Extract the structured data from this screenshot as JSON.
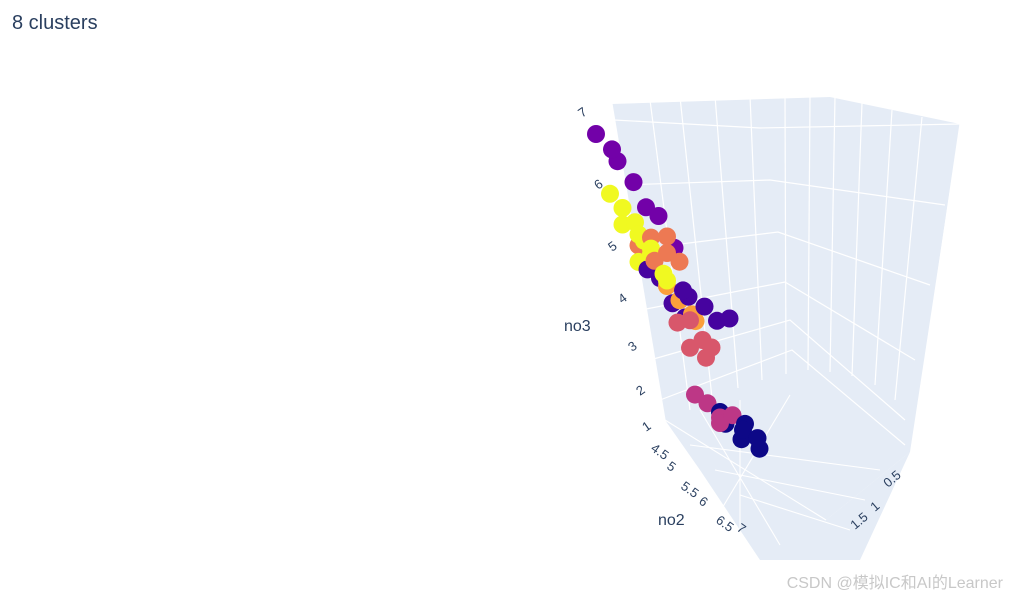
{
  "chart_data": {
    "type": "scatter3d",
    "title": "8 clusters",
    "axes": {
      "x": {
        "label": "no2",
        "ticks": [
          "4.5",
          "5",
          "5.5",
          "6",
          "6.5",
          "7"
        ]
      },
      "y": {
        "label": "",
        "ticks": [
          "0.5",
          "1",
          "1.5"
        ]
      },
      "z": {
        "label": "no3",
        "ticks": [
          "1",
          "2",
          "3",
          "4",
          "5",
          "6",
          "7"
        ]
      }
    },
    "colors": [
      "#0d0887",
      "#46039f",
      "#7201a8",
      "#9c179e",
      "#bd3786",
      "#d8576b",
      "#ed7953",
      "#fb9f3a",
      "#fdca26",
      "#f0f921"
    ],
    "background": "#e5ecf6",
    "grid": true,
    "legend": "none",
    "clusters": [
      {
        "color": "#0d0887",
        "points": [
          [
            6.6,
            1.2,
            2.0
          ],
          [
            6.4,
            1.1,
            2.2
          ],
          [
            6.8,
            1.3,
            2.1
          ],
          [
            6.5,
            1.0,
            2.4
          ],
          [
            6.7,
            1.2,
            2.3
          ],
          [
            6.6,
            1.4,
            1.9
          ],
          [
            6.9,
            1.1,
            2.2
          ]
        ]
      },
      {
        "color": "#46039f",
        "points": [
          [
            5.4,
            0.9,
            4.1
          ],
          [
            5.6,
            1.0,
            4.3
          ],
          [
            5.8,
            1.1,
            4.2
          ],
          [
            5.3,
            0.8,
            4.5
          ],
          [
            5.9,
            1.2,
            4.0
          ],
          [
            5.5,
            1.0,
            3.9
          ],
          [
            5.7,
            0.9,
            4.4
          ],
          [
            5.2,
            0.7,
            4.6
          ],
          [
            6.0,
            1.3,
            4.1
          ],
          [
            4.8,
            0.8,
            5.0
          ]
        ]
      },
      {
        "color": "#7201a8",
        "points": [
          [
            4.6,
            0.6,
            6.4
          ],
          [
            4.8,
            0.7,
            6.1
          ],
          [
            4.7,
            0.5,
            6.6
          ],
          [
            4.9,
            0.8,
            5.7
          ],
          [
            5.0,
            0.9,
            5.6
          ],
          [
            5.2,
            1.0,
            5.1
          ],
          [
            4.5,
            0.4,
            6.8
          ]
        ]
      },
      {
        "color": "#bd3786",
        "points": [
          [
            6.5,
            1.0,
            2.3
          ],
          [
            6.4,
            0.9,
            2.5
          ],
          [
            6.6,
            1.1,
            2.4
          ],
          [
            6.3,
            0.8,
            2.6
          ],
          [
            6.5,
            1.0,
            2.2
          ]
        ]
      },
      {
        "color": "#d8576b",
        "points": [
          [
            5.9,
            0.9,
            3.4
          ],
          [
            6.0,
            1.0,
            3.6
          ],
          [
            5.8,
            0.8,
            3.8
          ],
          [
            6.1,
            1.0,
            3.3
          ],
          [
            5.9,
            0.9,
            3.9
          ],
          [
            6.0,
            1.1,
            3.5
          ]
        ]
      },
      {
        "color": "#ed7953",
        "points": [
          [
            5.4,
            0.7,
            4.8
          ],
          [
            5.5,
            0.8,
            5.0
          ],
          [
            5.3,
            0.7,
            5.2
          ],
          [
            5.6,
            0.9,
            4.9
          ],
          [
            5.2,
            0.6,
            5.0
          ],
          [
            5.5,
            0.8,
            5.3
          ]
        ]
      },
      {
        "color": "#fb9f3a",
        "points": [
          [
            5.6,
            0.9,
            4.2
          ],
          [
            5.7,
            1.0,
            4.0
          ],
          [
            5.5,
            0.8,
            4.4
          ],
          [
            5.8,
            1.0,
            3.9
          ]
        ]
      },
      {
        "color": "#f0f921",
        "points": [
          [
            5.1,
            0.6,
            5.4
          ],
          [
            5.3,
            0.7,
            5.0
          ],
          [
            5.0,
            0.5,
            5.6
          ],
          [
            5.2,
            0.6,
            5.2
          ],
          [
            5.4,
            0.8,
            4.6
          ],
          [
            5.1,
            0.7,
            5.1
          ],
          [
            5.3,
            0.7,
            4.9
          ],
          [
            5.2,
            0.6,
            4.7
          ],
          [
            5.0,
            0.5,
            5.3
          ],
          [
            5.5,
            0.8,
            4.5
          ],
          [
            4.9,
            0.4,
            5.8
          ]
        ]
      }
    ]
  },
  "footer": {
    "watermark": "CSDN @模拟IC和AI的Learner"
  }
}
